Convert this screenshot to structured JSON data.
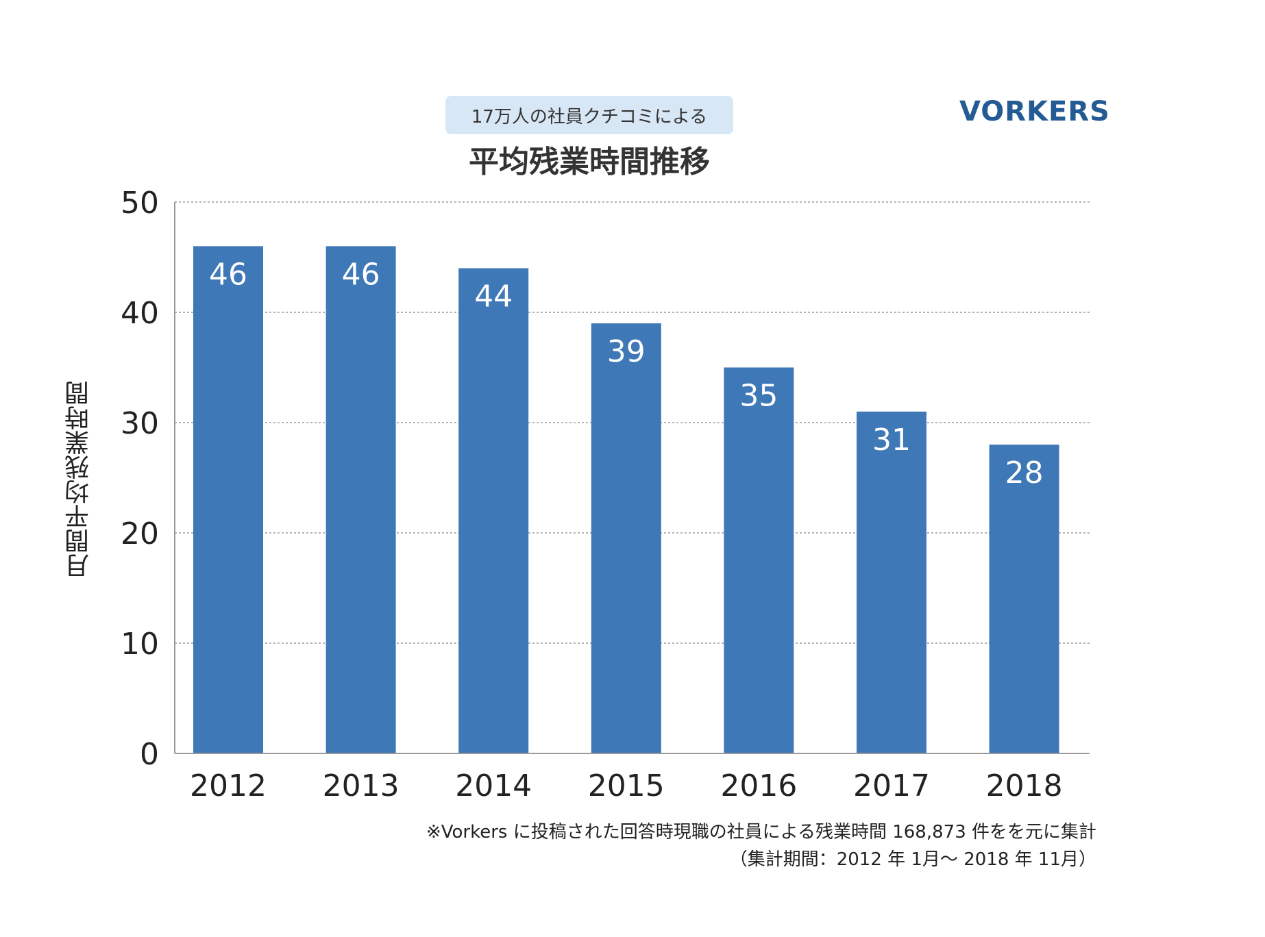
{
  "header": {
    "subtitle": "17万人の社員クチコミによる",
    "title": "平均残業時間推移",
    "logo": "VORKERS",
    "logo_color": "#245b94"
  },
  "footnote": {
    "line1": "※Vorkers に投稿された回答時現職の社員による残業時間 168,873 件をを元に集計",
    "line2": "（集計期間：2012 年 1月〜 2018 年 11月）"
  },
  "chart_data": {
    "type": "bar",
    "categories": [
      "2012",
      "2013",
      "2014",
      "2015",
      "2016",
      "2017",
      "2018"
    ],
    "values": [
      46,
      46,
      44,
      39,
      35,
      31,
      28
    ],
    "data_labels": [
      "46",
      "46",
      "44",
      "39",
      "35",
      "31",
      "28"
    ],
    "ylabel": "月間平均残業時間",
    "xlabel": "",
    "ylim": [
      0,
      50
    ],
    "yticks": [
      0,
      10,
      20,
      30,
      40,
      50
    ],
    "grid": true,
    "bar_color": "#3f78b6",
    "label_color": "#ffffff"
  }
}
